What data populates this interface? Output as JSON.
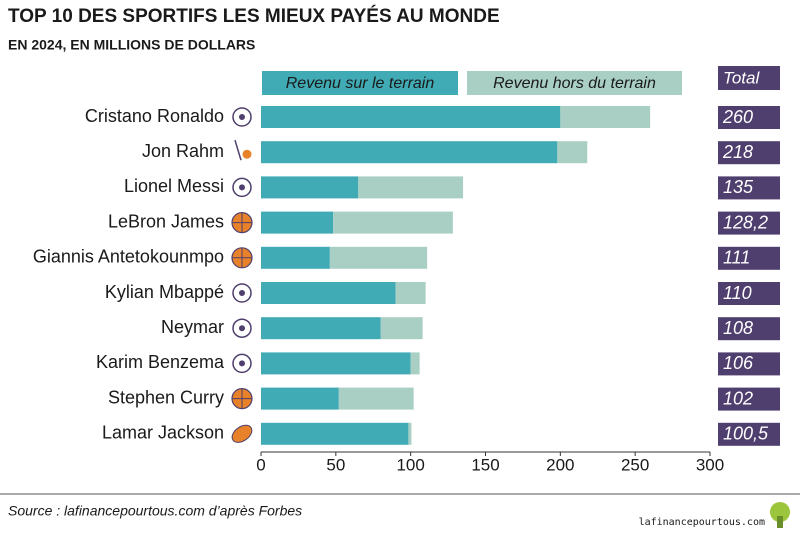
{
  "chart_data": {
    "type": "stacked-bar-horizontal",
    "title": "TOP 10 DES SPORTIFS LES MIEUX PAYÉS AU MONDE",
    "subtitle": "EN 2024, EN MILLIONS DE DOLLARS",
    "categories": [
      "Cristano Ronaldo",
      "Jon Rahm",
      "Lionel Messi",
      "LeBron James",
      "Giannis Antetokounmpo",
      "Kylian Mbappé",
      "Neymar",
      "Karim Benzema",
      "Stephen Curry",
      "Lamar Jackson"
    ],
    "series": [
      {
        "name": "Revenu sur le terrain",
        "color": "#40aab5",
        "values": [
          200,
          198,
          65,
          48.2,
          46,
          90,
          80,
          100,
          52,
          98.5
        ]
      },
      {
        "name": "Revenu hors du terrain",
        "color": "#a9cfc4",
        "values": [
          60,
          20,
          70,
          80,
          65,
          20,
          28,
          6,
          50,
          2
        ]
      }
    ],
    "totals": {
      "name": "Total",
      "color": "#4f3f6e",
      "values": [
        260,
        218,
        135,
        128.2,
        111,
        110,
        108,
        106,
        102,
        100.5
      ],
      "value_labels": [
        "260",
        "218",
        "135",
        "128,2",
        "111",
        "110",
        "108",
        "106",
        "102",
        "100,5"
      ]
    },
    "xlim": [
      0,
      300
    ],
    "xticks": [
      0,
      50,
      100,
      150,
      200,
      250,
      300
    ],
    "source": "Source : lafinancepourtous.com d’après Forbes",
    "logo": "lafinancepourtous.com"
  }
}
